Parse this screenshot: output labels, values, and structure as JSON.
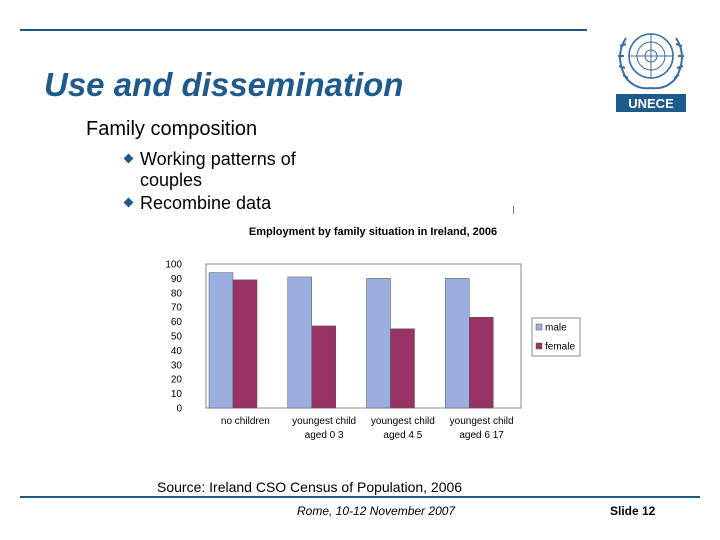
{
  "slide": {
    "title": "Use and dissemination",
    "subheading": "Family composition",
    "bullets": [
      "Working patterns of couples",
      "Recombine data"
    ],
    "source": "Source: Ireland CSO Census of Population, 2006",
    "footer": "Rome, 10-12 November 2007",
    "slide_number": "Slide 12",
    "logo_text": "UNECE",
    "colors": {
      "title": "#1f5a8c",
      "rule": "#1a5a86",
      "male": "#9aaee0",
      "female": "#993366"
    }
  },
  "chart_data": {
    "type": "bar",
    "title": "Employment by family situation in Ireland, 2006",
    "categories": [
      "no children",
      "youngest child aged 0 3",
      "youngest child aged 4 5",
      "youngest child aged 6 17"
    ],
    "category_lines": [
      [
        "no children"
      ],
      [
        "youngest child",
        "aged 0 3"
      ],
      [
        "youngest child",
        "aged 4 5"
      ],
      [
        "youngest child",
        "aged 6 17"
      ]
    ],
    "series": [
      {
        "name": "male",
        "values": [
          94,
          91,
          90,
          90
        ]
      },
      {
        "name": "female",
        "values": [
          89,
          57,
          55,
          63
        ]
      }
    ],
    "yticks": [
      "100",
      "90",
      "80",
      "70",
      "60",
      "50",
      "40",
      "30",
      "20",
      "10",
      "0"
    ],
    "ylim": [
      0,
      100
    ],
    "legend_position": "right",
    "grid": false
  }
}
